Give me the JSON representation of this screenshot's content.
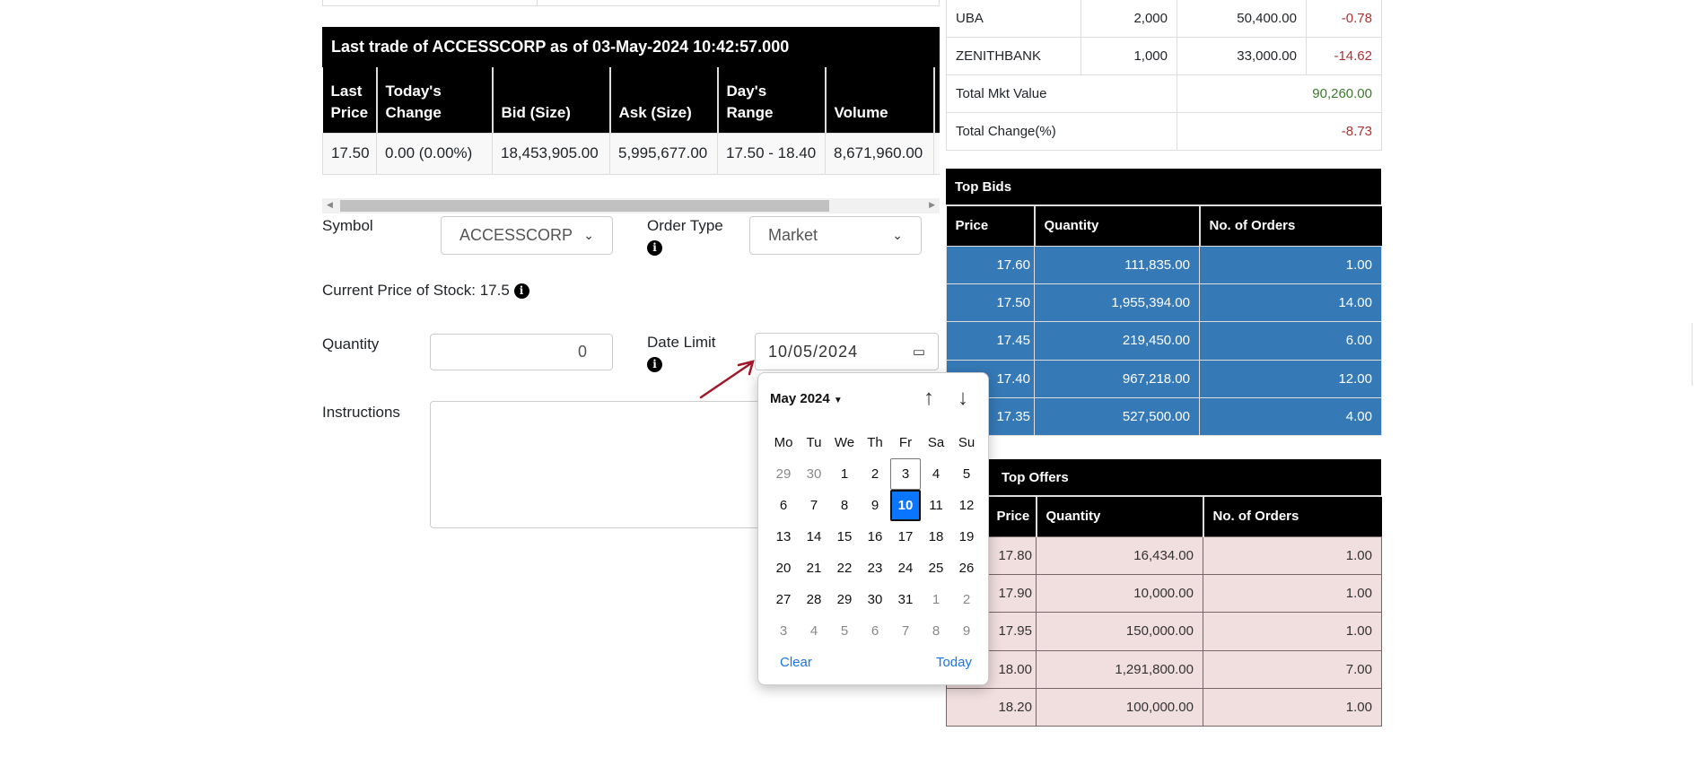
{
  "trade": {
    "title": "Last trade of ACCESSCORP as of 03-May-2024 10:42:57.000",
    "headers": [
      "Last Price",
      "Today's Change",
      "Bid (Size)",
      "Ask (Size)",
      "Day's Range",
      "Volume"
    ],
    "row": [
      "17.50",
      "0.00 (0.00%)",
      "18,453,905.00",
      "5,995,677.00",
      "17.50 - 18.40",
      "8,671,960.00"
    ]
  },
  "form": {
    "symbol_label": "Symbol",
    "symbol_value": "ACCESSCORP",
    "order_type_label": "Order Type",
    "order_type_value": "Market",
    "current_price_label": "Current Price of Stock: 17.5",
    "quantity_label": "Quantity",
    "quantity_value": "0",
    "date_limit_label": "Date Limit",
    "date_value": "10/05/2024",
    "instructions_label": "Instructions",
    "instructions_value": ""
  },
  "calendar": {
    "month_label": "May 2024",
    "weekdays": [
      "Mo",
      "Tu",
      "We",
      "Th",
      "Fr",
      "Sa",
      "Su"
    ],
    "days": [
      "29",
      "30",
      "1",
      "2",
      "3",
      "4",
      "5",
      "6",
      "7",
      "8",
      "9",
      "10",
      "11",
      "12",
      "13",
      "14",
      "15",
      "16",
      "17",
      "18",
      "19",
      "20",
      "21",
      "22",
      "23",
      "24",
      "25",
      "26",
      "27",
      "28",
      "29",
      "30",
      "31",
      "1",
      "2",
      "3",
      "4",
      "5",
      "6",
      "7",
      "8",
      "9"
    ],
    "today": "3",
    "selected": "10",
    "clear_label": "Clear",
    "today_label": "Today",
    "selected_color": "#0a75ff"
  },
  "holdings": {
    "rows": [
      {
        "symbol": "UBA",
        "qty": "2,000",
        "value": "50,400.00",
        "change": "-0.78"
      },
      {
        "symbol": "ZENITHBANK",
        "qty": "1,000",
        "value": "33,000.00",
        "change": "-14.62"
      }
    ],
    "total_mkt_label": "Total Mkt Value",
    "total_mkt_value": "90,260.00",
    "total_change_label": "Total Change(%)",
    "total_change_value": "-8.73"
  },
  "top_bids": {
    "title": "Top Bids",
    "headers": [
      "Price",
      "Quantity",
      "No. of Orders"
    ],
    "rows": [
      [
        "17.60",
        "111,835.00",
        "1.00"
      ],
      [
        "17.50",
        "1,955,394.00",
        "14.00"
      ],
      [
        "17.45",
        "219,450.00",
        "6.00"
      ],
      [
        "17.40",
        "967,218.00",
        "12.00"
      ],
      [
        "17.35",
        "527,500.00",
        "4.00"
      ]
    ],
    "color": "#3579b6"
  },
  "top_offers": {
    "title": "Top Offers",
    "headers": [
      "Price",
      "Quantity",
      "No. of Orders"
    ],
    "rows": [
      [
        "17.80",
        "16,434.00",
        "1.00"
      ],
      [
        "17.90",
        "10,000.00",
        "1.00"
      ],
      [
        "17.95",
        "150,000.00",
        "1.00"
      ],
      [
        "18.00",
        "1,291,800.00",
        "7.00"
      ],
      [
        "18.20",
        "100,000.00",
        "1.00"
      ]
    ],
    "color": "#f1dede"
  }
}
